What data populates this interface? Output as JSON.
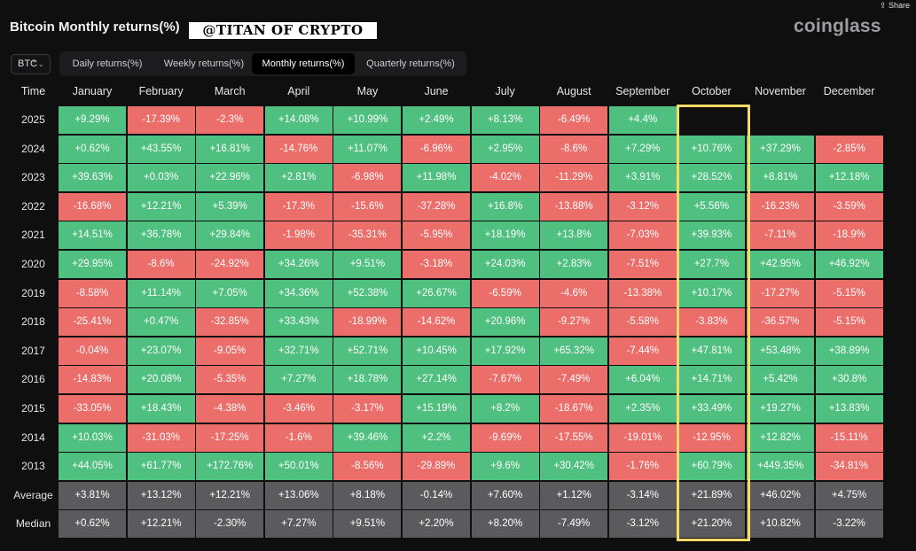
{
  "header": {
    "title": "Bitcoin Monthly returns(%)",
    "watermark": "@TITAN OF CRYPTO",
    "brand": "coinglass",
    "share_label": "Share"
  },
  "controls": {
    "coin": "BTC",
    "tabs": [
      "Daily returns(%)",
      "Weekly returns(%)",
      "Monthly returns(%)",
      "Quarterly returns(%)"
    ],
    "active_tab": 2
  },
  "colors": {
    "positive": "#4fc07f",
    "negative": "#ec6e6b",
    "summary": "#5b5b5e",
    "highlight": "#f4dc68"
  },
  "chart_data": {
    "type": "table",
    "title": "Bitcoin Monthly returns(%)",
    "highlighted_column": "October",
    "corner_label": "Time",
    "columns": [
      "January",
      "February",
      "March",
      "April",
      "May",
      "June",
      "July",
      "August",
      "September",
      "October",
      "November",
      "December"
    ],
    "rows": [
      {
        "label": "2025",
        "values": [
          "+9.29%",
          "-17.39%",
          "-2.3%",
          "+14.08%",
          "+10.99%",
          "+2.49%",
          "+8.13%",
          "-6.49%",
          "+4.4%",
          "",
          "",
          ""
        ]
      },
      {
        "label": "2024",
        "values": [
          "+0.62%",
          "+43.55%",
          "+16.81%",
          "-14.76%",
          "+11.07%",
          "-6.96%",
          "+2.95%",
          "-8.6%",
          "+7.29%",
          "+10.76%",
          "+37.29%",
          "-2.85%"
        ]
      },
      {
        "label": "2023",
        "values": [
          "+39.63%",
          "+0.03%",
          "+22.96%",
          "+2.81%",
          "-6.98%",
          "+11.98%",
          "-4.02%",
          "-11.29%",
          "+3.91%",
          "+28.52%",
          "+8.81%",
          "+12.18%"
        ]
      },
      {
        "label": "2022",
        "values": [
          "-16.68%",
          "+12.21%",
          "+5.39%",
          "-17.3%",
          "-15.6%",
          "-37.28%",
          "+16.8%",
          "-13.88%",
          "-3.12%",
          "+5.56%",
          "-16.23%",
          "-3.59%"
        ]
      },
      {
        "label": "2021",
        "values": [
          "+14.51%",
          "+36.78%",
          "+29.84%",
          "-1.98%",
          "-35.31%",
          "-5.95%",
          "+18.19%",
          "+13.8%",
          "-7.03%",
          "+39.93%",
          "-7.11%",
          "-18.9%"
        ]
      },
      {
        "label": "2020",
        "values": [
          "+29.95%",
          "-8.6%",
          "-24.92%",
          "+34.26%",
          "+9.51%",
          "-3.18%",
          "+24.03%",
          "+2.83%",
          "-7.51%",
          "+27.7%",
          "+42.95%",
          "+46.92%"
        ]
      },
      {
        "label": "2019",
        "values": [
          "-8.58%",
          "+11.14%",
          "+7.05%",
          "+34.36%",
          "+52.38%",
          "+26.67%",
          "-6.59%",
          "-4.6%",
          "-13.38%",
          "+10.17%",
          "-17.27%",
          "-5.15%"
        ]
      },
      {
        "label": "2018",
        "values": [
          "-25.41%",
          "+0.47%",
          "-32.85%",
          "+33.43%",
          "-18.99%",
          "-14.62%",
          "+20.96%",
          "-9.27%",
          "-5.58%",
          "-3.83%",
          "-36.57%",
          "-5.15%"
        ]
      },
      {
        "label": "2017",
        "values": [
          "-0.04%",
          "+23.07%",
          "-9.05%",
          "+32.71%",
          "+52.71%",
          "+10.45%",
          "+17.92%",
          "+65.32%",
          "-7.44%",
          "+47.81%",
          "+53.48%",
          "+38.89%"
        ]
      },
      {
        "label": "2016",
        "values": [
          "-14.83%",
          "+20.08%",
          "-5.35%",
          "+7.27%",
          "+18.78%",
          "+27.14%",
          "-7.67%",
          "-7.49%",
          "+6.04%",
          "+14.71%",
          "+5.42%",
          "+30.8%"
        ]
      },
      {
        "label": "2015",
        "values": [
          "-33.05%",
          "+18.43%",
          "-4.38%",
          "-3.46%",
          "-3.17%",
          "+15.19%",
          "+8.2%",
          "-18.67%",
          "+2.35%",
          "+33.49%",
          "+19.27%",
          "+13.83%"
        ]
      },
      {
        "label": "2014",
        "values": [
          "+10.03%",
          "-31.03%",
          "-17.25%",
          "-1.6%",
          "+39.46%",
          "+2.2%",
          "-9.69%",
          "-17.55%",
          "-19.01%",
          "-12.95%",
          "+12.82%",
          "-15.11%"
        ]
      },
      {
        "label": "2013",
        "values": [
          "+44.05%",
          "+61.77%",
          "+172.76%",
          "+50.01%",
          "-8.56%",
          "-29.89%",
          "+9.6%",
          "+30.42%",
          "-1.76%",
          "+60.79%",
          "+449.35%",
          "-34.81%"
        ]
      }
    ],
    "summary_rows": [
      {
        "label": "Average",
        "values": [
          "+3.81%",
          "+13.12%",
          "+12.21%",
          "+13.06%",
          "+8.18%",
          "-0.14%",
          "+7.60%",
          "+1.12%",
          "-3.14%",
          "+21.89%",
          "+46.02%",
          "+4.75%"
        ]
      },
      {
        "label": "Median",
        "values": [
          "+0.62%",
          "+12.21%",
          "-2.30%",
          "+7.27%",
          "+9.51%",
          "+2.20%",
          "+8.20%",
          "-7.49%",
          "-3.12%",
          "+21.20%",
          "+10.82%",
          "-3.22%"
        ]
      }
    ]
  }
}
